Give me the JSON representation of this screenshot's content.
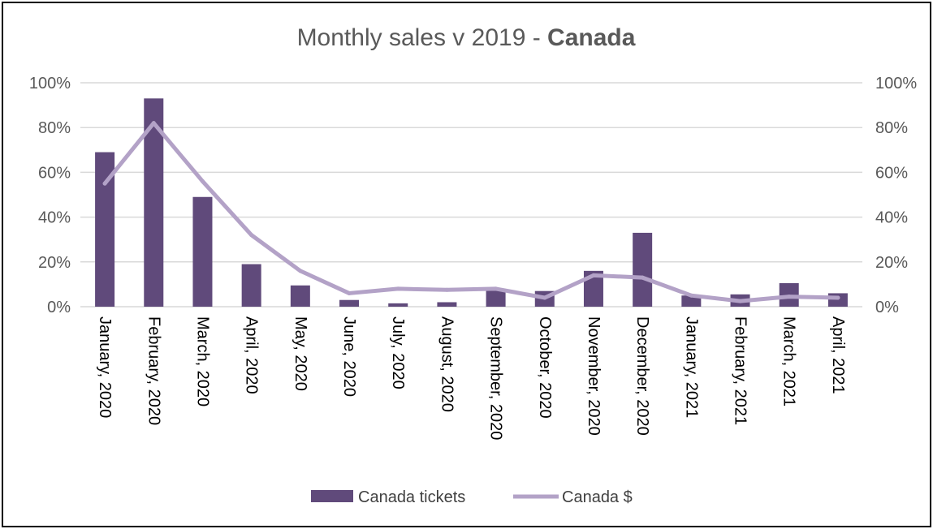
{
  "chart_data": {
    "type": "bar",
    "title": "Monthly sales v 2019 - ",
    "title_bold": "Canada",
    "categories": [
      "January, 2020",
      "February, 2020",
      "March, 2020",
      "April, 2020",
      "May, 2020",
      "June, 2020",
      "July, 2020",
      "August, 2020",
      "September, 2020",
      "October, 2020",
      "November, 2020",
      "December, 2020",
      "January, 2021",
      "February, 2021",
      "March, 2021",
      "April, 2021"
    ],
    "series": [
      {
        "name": "Canada tickets",
        "kind": "bar",
        "axis": "left",
        "color": "#604A7B",
        "values": [
          69,
          93,
          49,
          19,
          9.5,
          3,
          1.5,
          2,
          8,
          7,
          16,
          33,
          5,
          5.5,
          10.5,
          6
        ]
      },
      {
        "name": "Canada $",
        "kind": "line",
        "axis": "right",
        "color": "#B3A2C7",
        "values": [
          55,
          82,
          56,
          32,
          16,
          6,
          8,
          7.5,
          8,
          4,
          14,
          13,
          5,
          2.5,
          4.5,
          4
        ]
      }
    ],
    "ylim": [
      0,
      100
    ],
    "y2lim": [
      0,
      100
    ],
    "yticks": [
      "0%",
      "20%",
      "40%",
      "60%",
      "80%",
      "100%"
    ],
    "y2ticks": [
      "0%",
      "20%",
      "40%",
      "60%",
      "80%",
      "100%"
    ],
    "grid": true,
    "legend_position": "bottom"
  },
  "colors": {
    "grid": "#D9D9D9",
    "axis_text": "#595959",
    "frame": "#000000"
  }
}
